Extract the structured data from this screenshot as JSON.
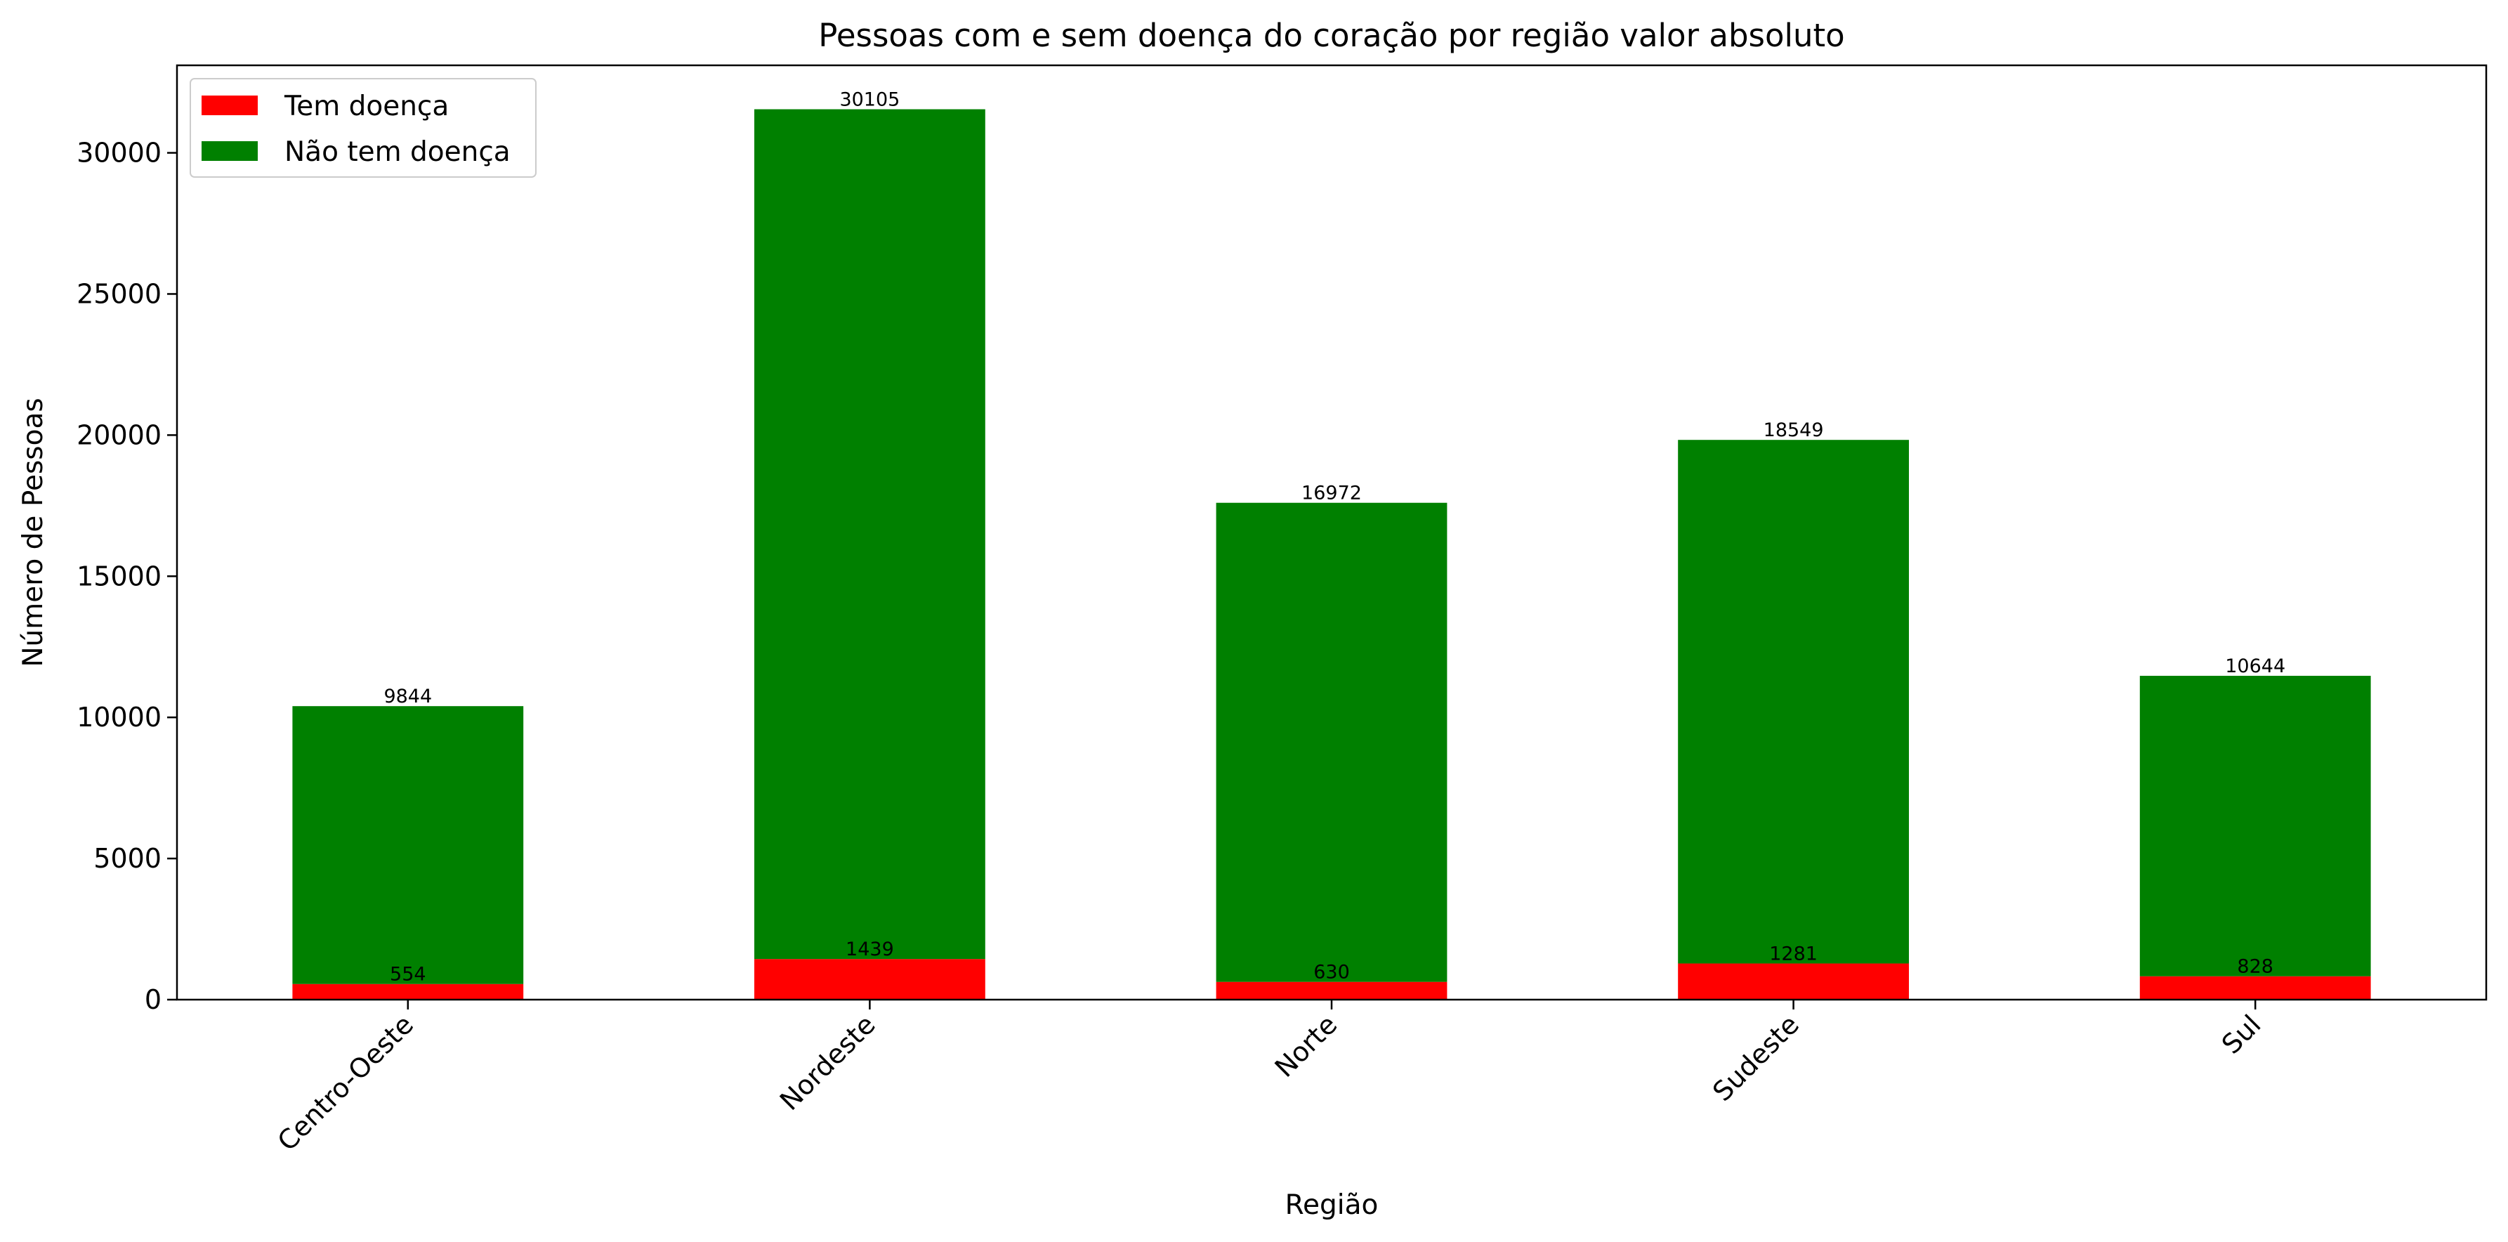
{
  "chart_data": {
    "type": "bar",
    "stacked": true,
    "title": "Pessoas com e sem doença do coração por região valor absoluto",
    "xlabel": "Região",
    "ylabel": "Número de Pessoas",
    "categories": [
      "Centro-Oeste",
      "Nordeste",
      "Norte",
      "Sudeste",
      "Sul"
    ],
    "series": [
      {
        "name": "Tem doença",
        "color": "#ff0000",
        "values": [
          554,
          1439,
          630,
          1281,
          828
        ]
      },
      {
        "name": "Não tem doença",
        "color": "#008000",
        "values": [
          9844,
          30105,
          16972,
          18549,
          10644
        ]
      }
    ],
    "ylim": [
      0,
      33100
    ],
    "yticks": [
      0,
      5000,
      10000,
      15000,
      20000,
      25000,
      30000
    ],
    "grid": false,
    "legend_position": "upper-left"
  }
}
